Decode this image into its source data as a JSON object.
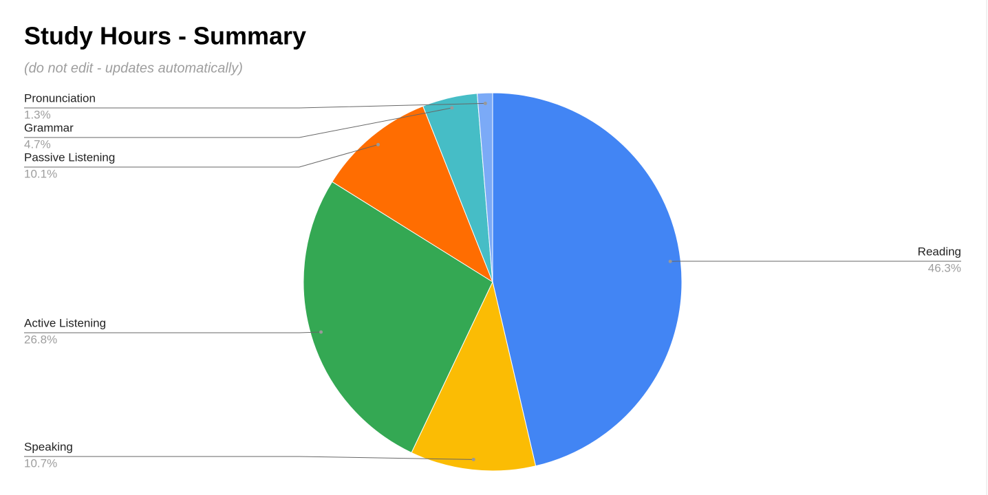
{
  "chart_data": {
    "type": "pie",
    "title": "Study Hours - Summary",
    "subtitle": "(do not edit - updates automatically)",
    "categories": [
      "Reading",
      "Speaking",
      "Active Listening",
      "Passive Listening",
      "Grammar",
      "Pronunciation"
    ],
    "values": [
      46.3,
      10.7,
      26.8,
      10.1,
      4.7,
      1.3
    ],
    "value_labels": [
      "46.3%",
      "10.7%",
      "26.8%",
      "10.1%",
      "4.7%",
      "1.3%"
    ],
    "colors": [
      "#4285f4",
      "#fbbc04",
      "#34a853",
      "#ff6d01",
      "#46bdc6",
      "#7baaf7"
    ]
  }
}
